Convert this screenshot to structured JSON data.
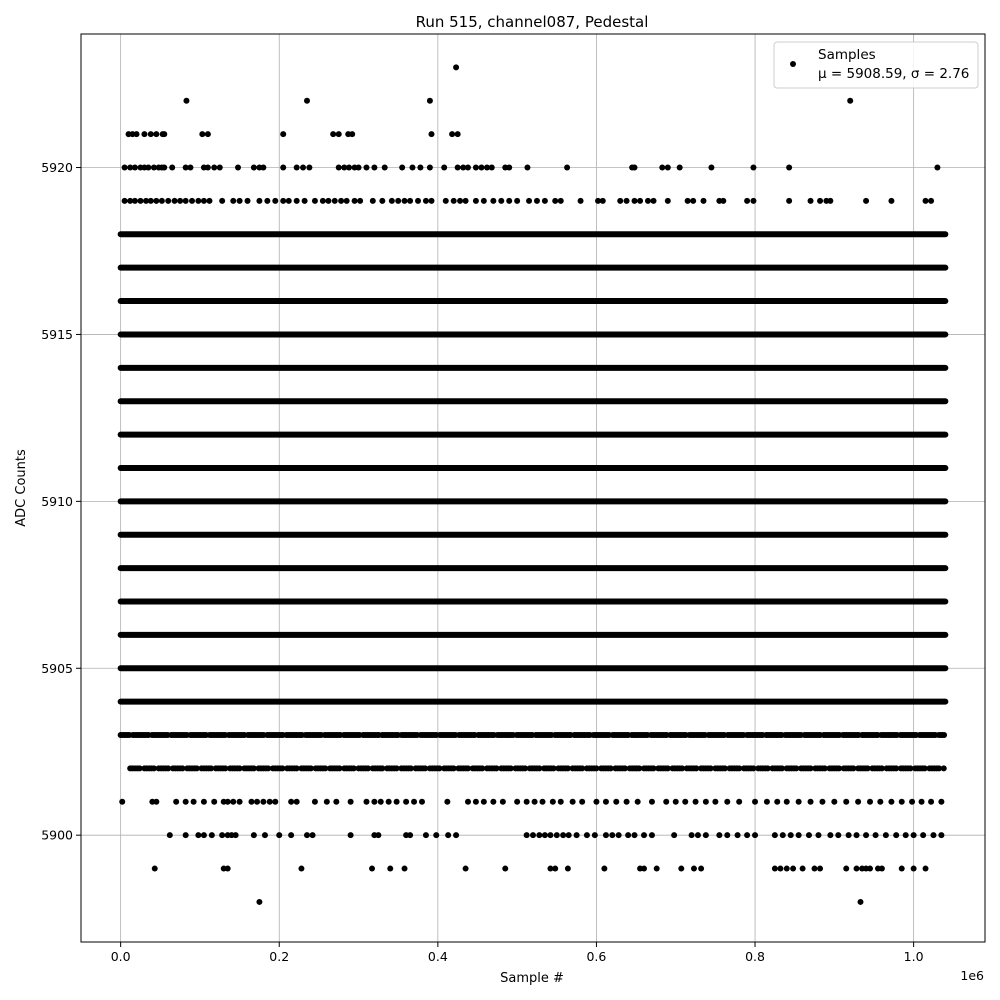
{
  "chart_data": {
    "type": "scatter",
    "title": "Run 515, channel087, Pedestal",
    "xlabel": "Sample #",
    "ylabel": "ADC Counts",
    "x_offset_label": "1e6",
    "xlim": [
      -50000,
      1090000
    ],
    "ylim": [
      5896.8,
      5924.0
    ],
    "x_ticks": [
      0,
      200000,
      400000,
      600000,
      800000,
      1000000
    ],
    "x_tick_labels": [
      "0.0",
      "0.2",
      "0.4",
      "0.6",
      "0.8",
      "1.0"
    ],
    "y_ticks": [
      5900,
      5905,
      5910,
      5915,
      5920
    ],
    "y_tick_labels": [
      "5900",
      "5905",
      "5910",
      "5915",
      "5920"
    ],
    "grid": true,
    "legend_position": "top-right",
    "marker_color": "#000000",
    "series": [
      {
        "name": "Samples",
        "stats_label": "μ = 5908.59, σ = 2.76",
        "dense_band": {
          "x_range": [
            0,
            1040000
          ],
          "y_values": [
            5904,
            5905,
            5906,
            5907,
            5908,
            5909,
            5910,
            5911,
            5912,
            5913,
            5914,
            5915,
            5916,
            5917,
            5918
          ]
        },
        "medium_band": {
          "x_range": [
            0,
            1040000
          ],
          "y_values": [
            5903,
            5902
          ]
        },
        "sparse_points": [
          {
            "y": 5923,
            "x": [
              423000
            ]
          },
          {
            "y": 5922,
            "x": [
              83000,
              235000,
              390000,
              920000
            ]
          },
          {
            "y": 5921,
            "x": [
              10000,
              15000,
              20000,
              30000,
              38000,
              45000,
              53000,
              55000,
              103000,
              110000,
              205000,
              268000,
              275000,
              287000,
              292000,
              392000,
              418000,
              425000
            ]
          },
          {
            "y": 5920,
            "x": [
              5000,
              12000,
              18000,
              25000,
              30000,
              35000,
              42000,
              48000,
              52000,
              55000,
              65000,
              82000,
              88000,
              105000,
              110000,
              118000,
              125000,
              148000,
              168000,
              175000,
              180000,
              205000,
              222000,
              230000,
              238000,
              275000,
              282000,
              288000,
              295000,
              300000,
              310000,
              320000,
              333000,
              355000,
              368000,
              378000,
              390000,
              408000,
              425000,
              432000,
              438000,
              448000,
              455000,
              462000,
              468000,
              485000,
              490000,
              513000,
              563000,
              645000,
              648000,
              683000,
              690000,
              705000,
              745000,
              798000,
              843000,
              1030000
            ]
          },
          {
            "y": 5919,
            "x": [
              5000,
              12000,
              18000,
              25000,
              32000,
              38000,
              45000,
              52000,
              60000,
              68000,
              75000,
              82000,
              90000,
              98000,
              105000,
              112000,
              128000,
              142000,
              150000,
              160000,
              175000,
              185000,
              195000,
              205000,
              212000,
              222000,
              232000,
              245000,
              255000,
              262000,
              270000,
              278000,
              285000,
              295000,
              302000,
              318000,
              330000,
              342000,
              350000,
              358000,
              365000,
              375000,
              385000,
              392000,
              410000,
              420000,
              428000,
              435000,
              448000,
              458000,
              470000,
              480000,
              490000,
              500000,
              515000,
              525000,
              535000,
              548000,
              555000,
              580000,
              602000,
              608000,
              630000,
              638000,
              648000,
              655000,
              665000,
              672000,
              690000,
              715000,
              722000,
              735000,
              755000,
              760000,
              790000,
              798000,
              843000,
              870000,
              882000,
              890000,
              895000,
              940000,
              972000,
              1015000,
              1022000
            ]
          },
          {
            "y": 5901,
            "x": [
              2000,
              40000,
              45000,
              70000,
              82000,
              92000,
              105000,
              118000,
              130000,
              135000,
              142000,
              150000,
              165000,
              172000,
              180000,
              188000,
              195000,
              215000,
              222000,
              245000,
              260000,
              272000,
              290000,
              310000,
              320000,
              328000,
              338000,
              348000,
              360000,
              370000,
              380000,
              412000,
              438000,
              448000,
              458000,
              470000,
              482000,
              500000,
              512000,
              522000,
              532000,
              545000,
              555000,
              570000,
              582000,
              600000,
              612000,
              625000,
              638000,
              652000,
              670000,
              688000,
              700000,
              712000,
              725000,
              738000,
              750000,
              765000,
              780000,
              800000,
              815000,
              828000,
              840000,
              855000,
              870000,
              885000,
              900000,
              915000,
              930000,
              945000,
              958000,
              972000,
              985000,
              998000,
              1010000,
              1022000,
              1035000
            ]
          },
          {
            "y": 5900,
            "x": [
              62000,
              82000,
              98000,
              105000,
              115000,
              128000,
              135000,
              140000,
              145000,
              168000,
              182000,
              200000,
              215000,
              235000,
              242000,
              290000,
              320000,
              325000,
              360000,
              365000,
              385000,
              398000,
              413000,
              423000,
              512000,
              520000,
              528000,
              535000,
              542000,
              550000,
              558000,
              565000,
              575000,
              588000,
              598000,
              612000,
              620000,
              628000,
              640000,
              648000,
              660000,
              670000,
              698000,
              720000,
              728000,
              738000,
              755000,
              765000,
              778000,
              790000,
              800000,
              825000,
              835000,
              845000,
              855000,
              868000,
              880000,
              895000,
              905000,
              918000,
              928000,
              940000,
              952000,
              965000,
              978000,
              990000,
              1000000,
              1012000,
              1025000,
              1035000
            ]
          },
          {
            "y": 5899,
            "x": [
              43000,
              130000,
              135000,
              228000,
              317000,
              340000,
              358000,
              435000,
              485000,
              542000,
              548000,
              564000,
              610000,
              655000,
              660000,
              676000,
              707000,
              723000,
              732000,
              825000,
              832000,
              840000,
              848000,
              860000,
              875000,
              882000,
              915000,
              928000,
              935000,
              940000,
              945000,
              955000,
              960000,
              985000,
              1000000,
              1015000
            ]
          },
          {
            "y": 5898,
            "x": [
              175000,
              933000
            ]
          }
        ]
      }
    ]
  }
}
